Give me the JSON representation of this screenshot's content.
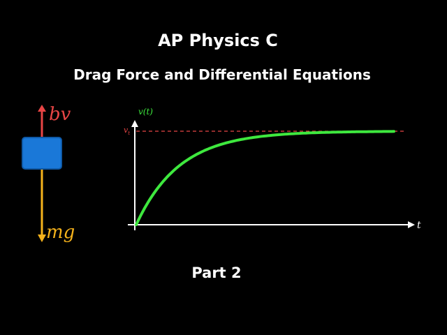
{
  "header": {
    "title": "AP Physics C",
    "subtitle": "Drag Force and Differential Equations"
  },
  "free_body": {
    "up_force": "bv",
    "down_force": "mg"
  },
  "graph": {
    "y_axis_label": "v(t)",
    "terminal_label": {
      "main": "v",
      "sub": "t"
    },
    "x_axis_label": "t"
  },
  "footer": {
    "part": "Part 2"
  }
}
